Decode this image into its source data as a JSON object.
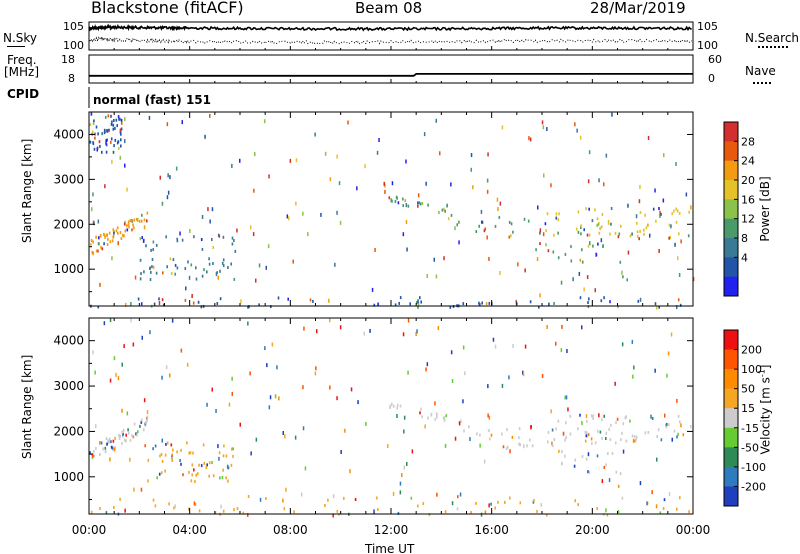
{
  "header": {
    "station": "Blackstone (fitACF)",
    "beam": "Beam 08",
    "date": "28/Mar/2019"
  },
  "chart_data": [
    {
      "type": "line",
      "panel": "noise",
      "left_label": "N.Sky",
      "right_label": "N.Search",
      "left_ticks": [
        "10^5",
        "10^0"
      ],
      "right_ticks": [
        "10^5",
        "10^0"
      ],
      "y_scale": "log",
      "ylim": [
        1,
        100000
      ],
      "x_range_hours": [
        0,
        24
      ],
      "series": [
        {
          "name": "N.Sky",
          "style": "solid",
          "x": [
            0,
            0.5,
            1,
            2,
            3,
            4,
            6,
            8,
            10,
            12,
            14,
            16,
            18,
            20,
            22,
            24
          ],
          "y": [
            30000,
            40000,
            50000,
            40000,
            35000,
            30000,
            25000,
            20000,
            20000,
            18000,
            20000,
            25000,
            30000,
            30000,
            28000,
            25000
          ]
        },
        {
          "name": "N.Search",
          "style": "dotted",
          "x": [
            0,
            0.5,
            1,
            2,
            3,
            4,
            6,
            8,
            10,
            12,
            14,
            16,
            18,
            20,
            22,
            24
          ],
          "y": [
            30,
            60,
            40,
            20,
            15,
            12,
            10,
            8,
            8,
            10,
            12,
            15,
            20,
            20,
            18,
            15
          ]
        }
      ]
    },
    {
      "type": "line",
      "panel": "frequency-nave",
      "left_label_line1": "Freq.",
      "left_label_line2": "[MHz]",
      "right_label": "Nave",
      "left_ticks": [
        "18",
        "8"
      ],
      "right_ticks": [
        "60",
        "0"
      ],
      "ylim_left": [
        8,
        18
      ],
      "ylim_right": [
        0,
        60
      ],
      "x_range_hours": [
        0,
        24
      ],
      "series": [
        {
          "name": "Freq.",
          "style": "solid",
          "x": [
            0,
            0.1,
            12.9,
            13.0,
            24
          ],
          "y": [
            10.2,
            10.2,
            10.2,
            11.0,
            11.0
          ]
        },
        {
          "name": "Nave",
          "style": "dotted",
          "x": [
            0,
            24
          ],
          "y": [
            20,
            20
          ]
        }
      ]
    },
    {
      "type": "table",
      "panel": "cpid",
      "label": "CPID",
      "entries": [
        {
          "start_hour": 0,
          "text": "normal (fast) 151"
        }
      ]
    },
    {
      "type": "heatmap",
      "panel": "power",
      "ylabel": "Slant Range [km]",
      "ytick_labels": [
        "1000",
        "2000",
        "3000",
        "4000"
      ],
      "yticks": [
        1000,
        2000,
        3000,
        4000
      ],
      "ylim": [
        180,
        4500
      ],
      "x_range_hours": [
        0,
        24
      ],
      "colorbar": {
        "label": "Power [dB]",
        "ticks": [
          "4",
          "8",
          "12",
          "16",
          "20",
          "24",
          "28"
        ],
        "colors": [
          "#2222ee",
          "#2255a8",
          "#3a7a95",
          "#4a9a6a",
          "#8bc34a",
          "#e6c229",
          "#f39c12",
          "#e8590c",
          "#d32f2f"
        ],
        "range": [
          0,
          32
        ]
      },
      "regions": [
        {
          "name": "early-band",
          "x": [
            0,
            2.3
          ],
          "y": [
            1400,
            2400
          ],
          "dominant": "#f39c12"
        },
        {
          "name": "morning-patch",
          "x": [
            2.0,
            5.8
          ],
          "y": [
            800,
            1800
          ],
          "dominant": "#3a7a95"
        },
        {
          "name": "high-range-patch",
          "x": [
            0,
            1.3
          ],
          "y": [
            3600,
            4500
          ],
          "dominant": "#2255a8"
        },
        {
          "name": "near-range-band",
          "x": [
            0,
            24
          ],
          "y": [
            180,
            400
          ],
          "dominant": "#2255a8"
        },
        {
          "name": "afternoon-tracks",
          "x": [
            11.9,
            21.5
          ],
          "y": [
            900,
            2700
          ],
          "dominant": "#4a9a6a"
        },
        {
          "name": "evening-band",
          "x": [
            18,
            24
          ],
          "y": [
            1700,
            2400
          ],
          "dominant": "#e6c229"
        }
      ]
    },
    {
      "type": "heatmap",
      "panel": "velocity",
      "ylabel": "Slant Range [km]",
      "ytick_labels": [
        "1000",
        "2000",
        "3000",
        "4000"
      ],
      "yticks": [
        1000,
        2000,
        3000,
        4000
      ],
      "ylim": [
        180,
        4500
      ],
      "x_range_hours": [
        0,
        24
      ],
      "colorbar": {
        "label_main": "Velocity [m s",
        "label_sup": "-1",
        "label_end": "]",
        "ticks": [
          "200",
          "100",
          "50",
          "15",
          "-15",
          "-50",
          "-100",
          "-200"
        ],
        "colors": [
          "#1f3fbf",
          "#2e7bc0",
          "#2e8b57",
          "#66cc33",
          "#cccccc",
          "#f5a623",
          "#ff8c00",
          "#ff5500",
          "#ee1111"
        ],
        "range": [
          -250,
          250
        ]
      },
      "regions": [
        {
          "name": "early-band",
          "x": [
            0,
            2.3
          ],
          "y": [
            1300,
            2300
          ],
          "dominant": "#cccccc"
        },
        {
          "name": "morning-patch",
          "x": [
            2.1,
            5.8
          ],
          "y": [
            900,
            1800
          ],
          "dominant": "#f5a623"
        },
        {
          "name": "near-range-band",
          "x": [
            0,
            24
          ],
          "y": [
            180,
            600
          ],
          "dominant": "#f5a623"
        },
        {
          "name": "afternoon-tracks",
          "x": [
            11.9,
            21.5
          ],
          "y": [
            900,
            2700
          ],
          "dominant": "#cccccc"
        },
        {
          "name": "evening-band",
          "x": [
            18,
            24
          ],
          "y": [
            1800,
            2400
          ],
          "dominant": "#cccccc"
        }
      ]
    }
  ],
  "x_axis": {
    "label": "Time UT",
    "ticks": [
      "00:00",
      "04:00",
      "08:00",
      "12:00",
      "16:00",
      "20:00",
      "00:00"
    ],
    "tick_hours": [
      0,
      4,
      8,
      12,
      16,
      20,
      24
    ]
  }
}
